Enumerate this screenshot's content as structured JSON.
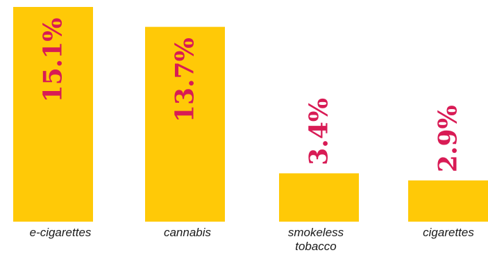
{
  "chart_data": {
    "type": "bar",
    "categories": [
      "e-cigarettes",
      "cannabis",
      "smokeless tobacco",
      "cigarettes"
    ],
    "category_lines": [
      [
        "e-cigarettes"
      ],
      [
        "cannabis"
      ],
      [
        "smokeless",
        "tobacco"
      ],
      [
        "cigarettes"
      ]
    ],
    "values": [
      15.1,
      13.7,
      3.4,
      2.9
    ],
    "value_labels": [
      "15.1%",
      "13.7%",
      "3.4%",
      "2.9%"
    ],
    "unit": "%",
    "ylim": [
      0,
      15.1
    ],
    "grid": false,
    "legend": "none",
    "colors": {
      "bar": "#FFC907",
      "label": "#D81B55",
      "text": "#1a1a1a"
    }
  }
}
